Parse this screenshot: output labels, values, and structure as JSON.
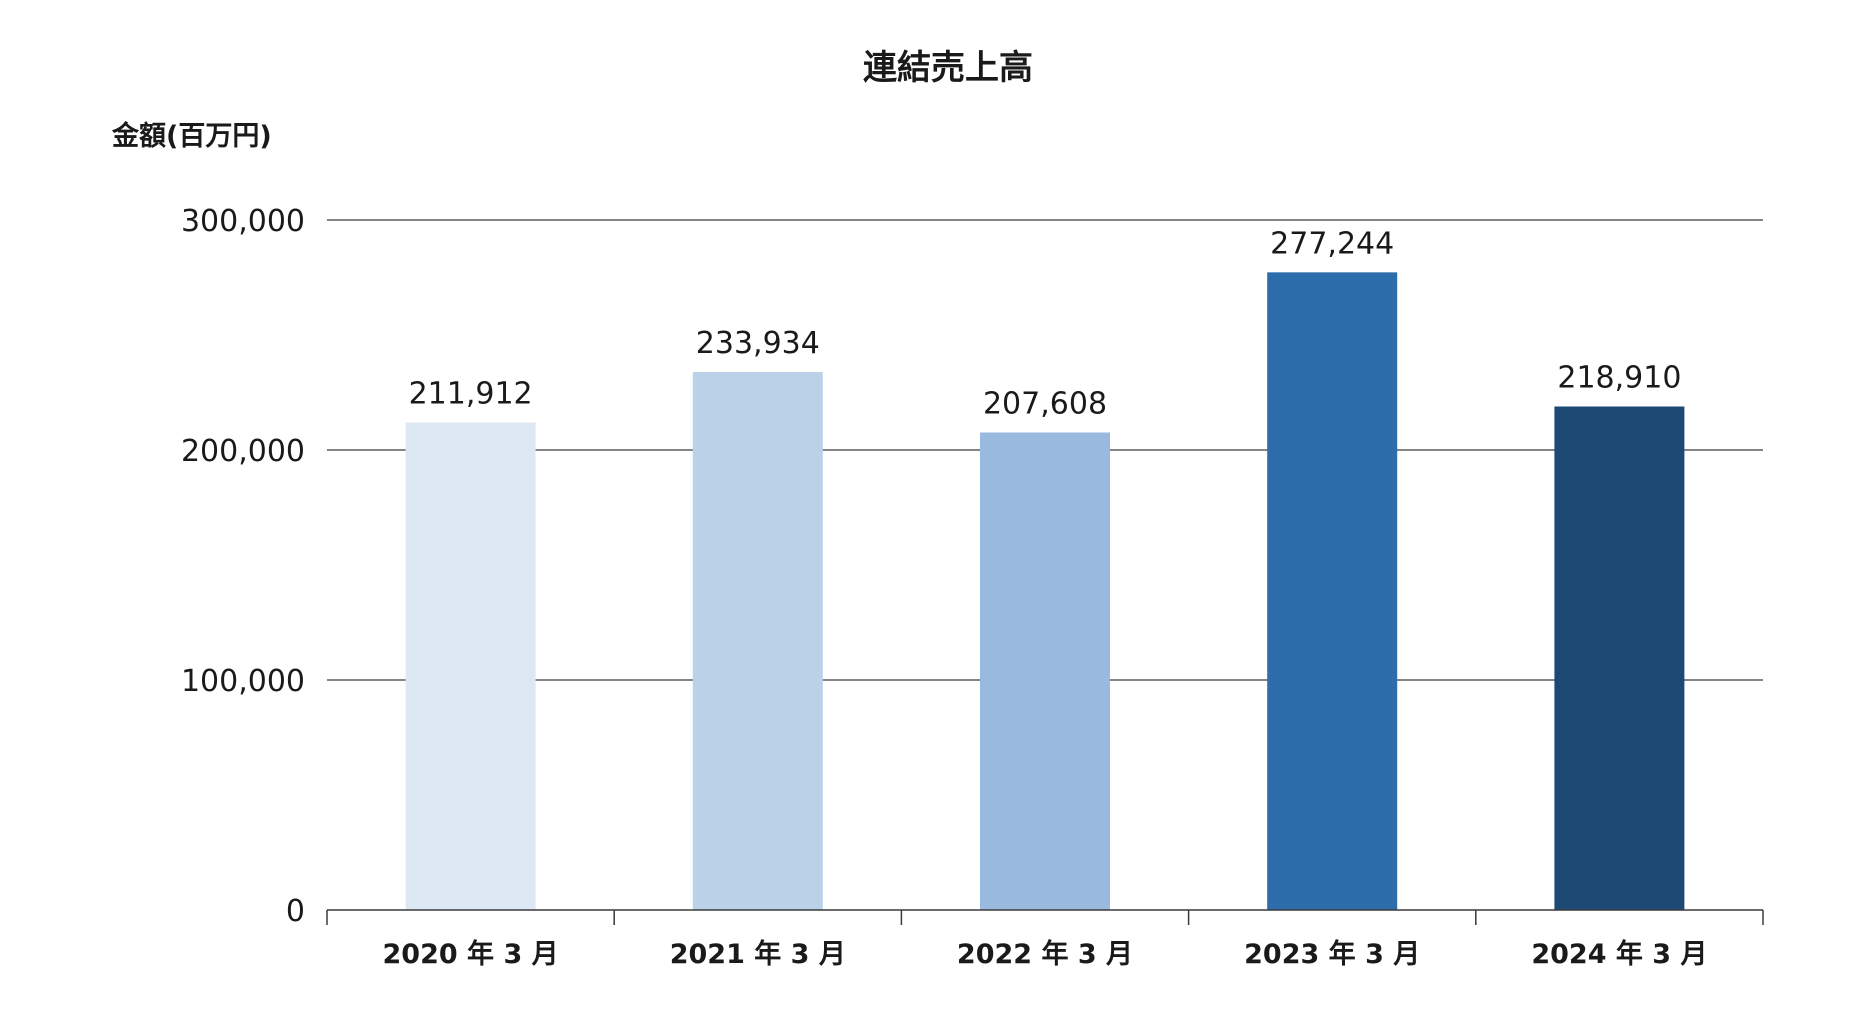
{
  "chart_data": {
    "type": "bar",
    "title": "連結売上高",
    "ylabel": "金額(百万円)",
    "xlabel": "",
    "categories": [
      "2020 年 3 月",
      "2021 年 3 月",
      "2022 年 3 月",
      "2023 年 3 月",
      "2024 年 3 月"
    ],
    "values": [
      211912,
      233934,
      207608,
      277244,
      218910
    ],
    "value_labels": [
      "211,912",
      "233,934",
      "207,608",
      "277,244",
      "218,910"
    ],
    "bar_colors": [
      "#dde8f4",
      "#bad1e7",
      "#99bade",
      "#2e6dab",
      "#1c4a75"
    ],
    "ylim": [
      0,
      300000
    ],
    "yticks": [
      0,
      100000,
      200000,
      300000
    ],
    "ytick_labels": [
      "0",
      "100,000",
      "200,000",
      "300,000"
    ],
    "grid": true,
    "legend": "none"
  }
}
